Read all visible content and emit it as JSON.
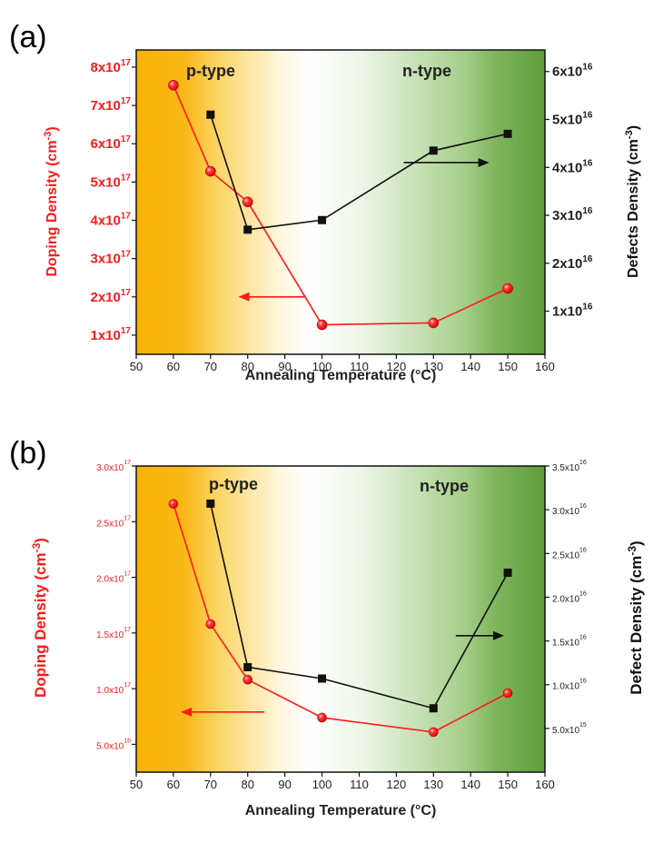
{
  "panels": [
    {
      "label": "(a)",
      "region_left": "p-type",
      "region_right": "n-type",
      "xlabel": "Annealing Temperature (°C)",
      "ylabel_left": "Doping Density (cm",
      "ylabel_left_sup": "-3",
      "ylabel_left_end": ")",
      "ylabel_right": "Defects Density (cm",
      "ylabel_right_sup": "-3",
      "ylabel_right_end": ")",
      "gradient": {
        "orange": "#f9b200",
        "white": "#ffffff",
        "green": "#5e9e3a"
      }
    },
    {
      "label": "(b)",
      "region_left": "p-type",
      "region_right": "n-type",
      "xlabel": "Annealing Temperature (°C)",
      "ylabel_left": "Doping Density (cm",
      "ylabel_left_sup": "-3",
      "ylabel_left_end": ")",
      "ylabel_right": "Defect Density (cm",
      "ylabel_right_sup": "-3",
      "ylabel_right_end": ")",
      "gradient": {
        "orange": "#f9b200",
        "white": "#ffffff",
        "green": "#5e9e3a"
      }
    }
  ],
  "chart_data": [
    {
      "type": "line",
      "x_ticks": [
        50,
        60,
        70,
        80,
        90,
        100,
        110,
        120,
        130,
        140,
        150,
        160
      ],
      "xlim": [
        50,
        160
      ],
      "y_left_ticks": [
        {
          "mant": "1x10",
          "exp": "17",
          "value": 1e+17
        },
        {
          "mant": "2x10",
          "exp": "17",
          "value": 2e+17
        },
        {
          "mant": "3x10",
          "exp": "17",
          "value": 3e+17
        },
        {
          "mant": "4x10",
          "exp": "17",
          "value": 4e+17
        },
        {
          "mant": "5x10",
          "exp": "17",
          "value": 5e+17
        },
        {
          "mant": "6x10",
          "exp": "17",
          "value": 6e+17
        },
        {
          "mant": "7x10",
          "exp": "17",
          "value": 7e+17
        },
        {
          "mant": "8x10",
          "exp": "17",
          "value": 8e+17
        }
      ],
      "y_left_lim": [
        5e+16,
        8.45e+17
      ],
      "y_right_ticks": [
        {
          "mant": "1x10",
          "exp": "16",
          "value": 1e+16
        },
        {
          "mant": "2x10",
          "exp": "16",
          "value": 2e+16
        },
        {
          "mant": "3x10",
          "exp": "16",
          "value": 3e+16
        },
        {
          "mant": "4x10",
          "exp": "16",
          "value": 4e+16
        },
        {
          "mant": "5x10",
          "exp": "16",
          "value": 5e+16
        },
        {
          "mant": "6x10",
          "exp": "16",
          "value": 6e+16
        }
      ],
      "y_right_lim": [
        1000000000000000.0,
        6.45e+16
      ],
      "series": [
        {
          "axis": "left",
          "color": "#ff1a1a",
          "marker": "circle",
          "x": [
            60,
            70,
            80,
            100,
            130,
            150
          ],
          "y": [
            7.53e+17,
            5.28e+17,
            4.48e+17,
            1.27e+17,
            1.32e+17,
            2.22e+17
          ]
        },
        {
          "axis": "right",
          "color": "#111111",
          "marker": "square",
          "x": [
            70,
            80,
            100,
            130,
            150
          ],
          "y": [
            5.1e+16,
            2.7e+16,
            2.9e+16,
            4.35e+16,
            4.7e+16
          ]
        }
      ],
      "arrows": [
        {
          "color": "#ff1a1a",
          "x1": 95.5,
          "x2": 77.5,
          "axis": "left",
          "y": 2e+17
        },
        {
          "color": "#111111",
          "x1": 122,
          "x2": 145,
          "axis": "right",
          "y": 4.1e+16
        }
      ]
    },
    {
      "type": "line",
      "x_ticks": [
        50,
        60,
        70,
        80,
        90,
        100,
        110,
        120,
        130,
        140,
        150,
        160
      ],
      "xlim": [
        50,
        160
      ],
      "y_left_ticks": [
        {
          "mant": "5.0x10",
          "exp": "16",
          "value": 5e+16
        },
        {
          "mant": "1.0x10",
          "exp": "17",
          "value": 1e+17
        },
        {
          "mant": "1.5x10",
          "exp": "17",
          "value": 1.5e+17
        },
        {
          "mant": "2.0x10",
          "exp": "17",
          "value": 2e+17
        },
        {
          "mant": "2.5x10",
          "exp": "17",
          "value": 2.5e+17
        },
        {
          "mant": "3.0x10",
          "exp": "17",
          "value": 3e+17
        }
      ],
      "y_left_lim": [
        2.5e+16,
        3e+17
      ],
      "y_right_ticks": [
        {
          "mant": "5.0x10",
          "exp": "15",
          "value": 5000000000000000.0
        },
        {
          "mant": "1.0x10",
          "exp": "16",
          "value": 1e+16
        },
        {
          "mant": "1.5x10",
          "exp": "16",
          "value": 1.5e+16
        },
        {
          "mant": "2.0x10",
          "exp": "16",
          "value": 2e+16
        },
        {
          "mant": "2.5x10",
          "exp": "16",
          "value": 2.5e+16
        },
        {
          "mant": "3.0x10",
          "exp": "16",
          "value": 3e+16
        },
        {
          "mant": "3.5x10",
          "exp": "16",
          "value": 3.5e+16
        }
      ],
      "y_right_lim": [
        0.0,
        3.5e+16
      ],
      "series": [
        {
          "axis": "left",
          "color": "#ff1a1a",
          "marker": "circle",
          "x": [
            60,
            70,
            80,
            100,
            130,
            150
          ],
          "y": [
            2.66e+17,
            1.58e+17,
            1.08e+17,
            7.4e+16,
            6.1e+16,
            9.6e+16
          ]
        },
        {
          "axis": "right",
          "color": "#111111",
          "marker": "square",
          "x": [
            70,
            80,
            100,
            130,
            150
          ],
          "y": [
            3.07e+16,
            1.2e+16,
            1.07e+16,
            7300000000000000.0,
            2.28e+16
          ]
        }
      ],
      "arrows": [
        {
          "color": "#ff1a1a",
          "x1": 84.5,
          "x2": 62,
          "axis": "left",
          "y": 7.9e+16
        },
        {
          "color": "#111111",
          "x1": 136,
          "x2": 149,
          "axis": "right",
          "y": 1.56e+16
        }
      ]
    }
  ]
}
